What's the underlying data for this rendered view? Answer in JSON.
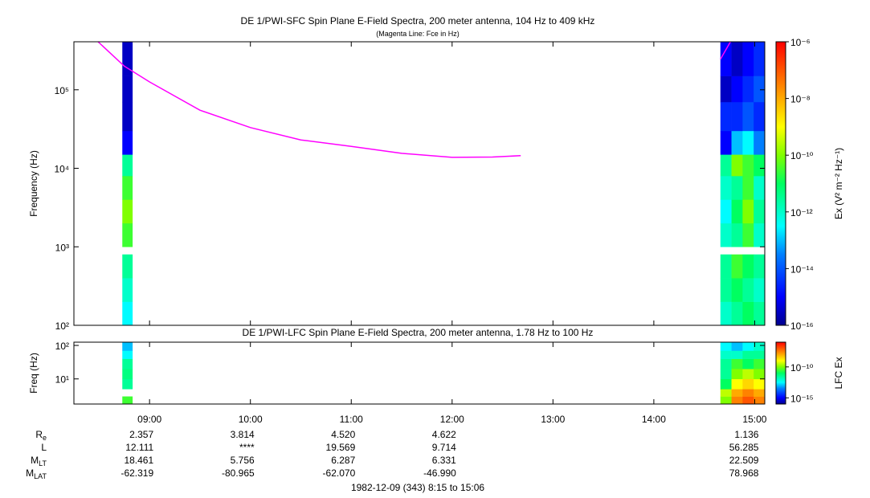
{
  "chart_data": [
    {
      "type": "spectrogram",
      "title": "DE 1/PWI-SFC  Spin Plane E-Field Spectra, 200 meter antenna, 104 Hz to 409 kHz",
      "subtitle": "(Magenta Line: Fce in Hz)",
      "ylabel": "Frequency (Hz)",
      "zlabel": "Ex (V² m⁻² Hz⁻¹)",
      "xlim": [
        8.25,
        15.1
      ],
      "ylim": [
        100,
        409000
      ],
      "yscale": "log",
      "yticks": [
        {
          "value": 100,
          "label": "10²"
        },
        {
          "value": 1000,
          "label": "10³"
        },
        {
          "value": 10000,
          "label": "10⁴"
        },
        {
          "value": 100000,
          "label": "10⁵"
        }
      ],
      "zlim": [
        1e-16,
        1e-06
      ],
      "zscale": "log",
      "colormap": "rainbow",
      "zticks": [
        {
          "value": 1e-06,
          "label": "10⁻⁶"
        },
        {
          "value": 1e-08,
          "label": "10⁻⁸"
        },
        {
          "value": 1e-10,
          "label": "10⁻¹⁰"
        },
        {
          "value": 1e-12,
          "label": "10⁻¹²"
        },
        {
          "value": 1e-14,
          "label": "10⁻¹⁴"
        },
        {
          "value": 1e-16,
          "label": "10⁻¹⁶"
        }
      ],
      "ybins": [
        100,
        200,
        400,
        800,
        1000,
        2000,
        4000,
        8000,
        15000,
        30000,
        70000,
        150000,
        409000
      ],
      "columns": [
        {
          "x": [
            8.73,
            8.83
          ],
          "z": [
            3e-13,
            1e-12,
            3e-12,
            null,
            3e-11,
            1e-10,
            3e-11,
            3e-12,
            1e-15,
            3e-16,
            3e-16,
            3e-16
          ]
        },
        {
          "x": [
            14.66,
            14.77
          ],
          "z": [
            1e-12,
            3e-12,
            3e-12,
            null,
            1e-12,
            3e-13,
            1e-12,
            3e-12,
            1e-15,
            3e-15,
            3e-16,
            1e-15
          ]
        },
        {
          "x": [
            14.77,
            14.88
          ],
          "z": [
            3e-12,
            1e-11,
            3e-11,
            null,
            3e-12,
            1e-11,
            3e-12,
            1e-10,
            1e-13,
            3e-15,
            1e-15,
            3e-16
          ]
        },
        {
          "x": [
            14.88,
            14.99
          ],
          "z": [
            1e-11,
            3e-12,
            1e-11,
            null,
            3e-11,
            1e-10,
            3e-11,
            3e-11,
            3e-13,
            1e-14,
            3e-15,
            1e-15
          ]
        },
        {
          "x": [
            14.99,
            15.1
          ],
          "z": [
            3e-12,
            1e-12,
            3e-12,
            null,
            1e-12,
            3e-12,
            1e-12,
            1e-11,
            3e-14,
            3e-15,
            1e-14,
            3e-15
          ]
        }
      ],
      "line": {
        "color": "#ff00ff",
        "x": [
          8.49,
          8.75,
          9,
          9.5,
          10,
          10.5,
          11,
          11.5,
          12,
          12.4,
          12.68,
          13.5,
          14.66,
          14.76
        ],
        "values": [
          409000,
          200000,
          126000,
          55000,
          33000,
          23000,
          19000,
          15500,
          13800,
          13900,
          14500,
          null,
          245000,
          409000
        ]
      }
    },
    {
      "type": "spectrogram",
      "title": "DE 1/PWI-LFC  Spin Plane E-Field Spectra, 200 meter antenna, 1.78 Hz to 100 Hz",
      "ylabel": "Freq (Hz)",
      "zlabel": "LFC Ex",
      "xlim": [
        8.25,
        15.1
      ],
      "ylim": [
        1.78,
        125
      ],
      "yscale": "log",
      "xticks": [
        {
          "value": 9,
          "label": "09:00"
        },
        {
          "value": 10,
          "label": "10:00"
        },
        {
          "value": 11,
          "label": "11:00"
        },
        {
          "value": 12,
          "label": "12:00"
        },
        {
          "value": 13,
          "label": "13:00"
        },
        {
          "value": 14,
          "label": "14:00"
        },
        {
          "value": 15,
          "label": "15:00"
        }
      ],
      "yticks": [
        {
          "value": 10,
          "label": "10¹"
        },
        {
          "value": 100,
          "label": "10²"
        }
      ],
      "zlim": [
        1e-16,
        1e-06
      ],
      "zscale": "log",
      "colormap": "rainbow",
      "zticks": [
        {
          "value": 1e-10,
          "label": "10⁻¹⁰"
        },
        {
          "value": 1e-15,
          "label": "10⁻¹⁵"
        }
      ],
      "ybins": [
        1.78,
        3,
        5,
        10,
        20,
        40,
        70,
        125
      ],
      "columns": [
        {
          "x": [
            8.73,
            8.83
          ],
          "z": [
            3e-11,
            null,
            3e-12,
            5e-12,
            3e-12,
            3e-13,
            1e-13
          ]
        },
        {
          "x": [
            14.66,
            14.77
          ],
          "z": [
            1e-10,
            3e-10,
            1e-11,
            3e-12,
            3e-12,
            1e-12,
            3e-13
          ]
        },
        {
          "x": [
            14.77,
            14.88
          ],
          "z": [
            3e-08,
            1e-08,
            1e-09,
            1e-10,
            3e-11,
            1e-12,
            1e-13
          ]
        },
        {
          "x": [
            14.88,
            14.99
          ],
          "z": [
            1e-07,
            3e-08,
            3e-09,
            3e-10,
            1e-11,
            3e-12,
            3e-13
          ]
        },
        {
          "x": [
            14.99,
            15.1
          ],
          "z": [
            3e-08,
            1e-08,
            1e-09,
            1e-10,
            3e-11,
            3e-12,
            1e-12
          ]
        }
      ]
    }
  ],
  "ephemeris": {
    "rows": [
      {
        "label": "R",
        "sub": "e",
        "values": [
          "2.357",
          "3.814",
          "4.520",
          "4.622",
          null,
          null,
          "1.136"
        ]
      },
      {
        "label": "L",
        "values": [
          "12.111",
          "****",
          "19.569",
          "9.714",
          null,
          null,
          "56.285"
        ]
      },
      {
        "label": "M",
        "sub": "LT",
        "values": [
          "18.461",
          "5.756",
          "6.287",
          "6.331",
          null,
          null,
          "22.509"
        ]
      },
      {
        "label": "M",
        "sub": "LAT",
        "values": [
          "-62.319",
          "-80.965",
          "-62.070",
          "-46.990",
          null,
          null,
          "78.968"
        ]
      }
    ]
  },
  "footer": "1982-12-09 (343) 8:15 to 15:06"
}
